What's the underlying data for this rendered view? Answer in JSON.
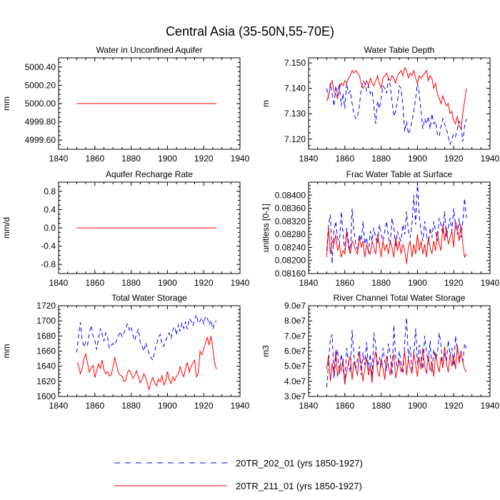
{
  "title": "Central Asia (35-50N,55-70E)",
  "colors": {
    "dashed_series": "#0000ff",
    "solid_series": "#ff0000"
  },
  "legend": [
    {
      "label": "20TR_202_01 (yrs 1850-1927)",
      "color": "#0000ff",
      "style": "dashed"
    },
    {
      "label": "20TR_211_01 (yrs 1850-1927)",
      "color": "#ff0000",
      "style": "solid"
    }
  ],
  "chart_data": [
    {
      "type": "line",
      "title": "Water in Unconfined Aquifer",
      "ylabel": "mm",
      "xlim": [
        1840,
        1940
      ],
      "ylim": [
        4999.5,
        5000.5
      ],
      "xticks": [
        1840,
        1860,
        1880,
        1900,
        1920,
        1940
      ],
      "xtick_labels": [
        "1840",
        "1860",
        "1880",
        "1900",
        "1920",
        "1940"
      ],
      "yticks": [
        4999.6,
        4999.8,
        5000.0,
        5000.2,
        5000.4
      ],
      "ytick_labels": [
        "4999.60",
        "4999.80",
        "5000.00",
        "5000.20",
        "5000.40"
      ],
      "x_start": 1850,
      "x_end": 1927,
      "series": [
        {
          "values": [
            5000,
            5000
          ]
        },
        {
          "values": [
            5000,
            5000
          ]
        }
      ]
    },
    {
      "type": "line",
      "title": "Water Table Depth",
      "ylabel": "m",
      "xlim": [
        1840,
        1940
      ],
      "ylim": [
        7.116,
        7.152
      ],
      "xticks": [
        1840,
        1860,
        1880,
        1900,
        1920,
        1940
      ],
      "xtick_labels": [
        "1840",
        "1860",
        "1880",
        "1900",
        "1920",
        "1940"
      ],
      "yticks": [
        7.12,
        7.13,
        7.14,
        7.15
      ],
      "ytick_labels": [
        "7.120",
        "7.130",
        "7.140",
        "7.150"
      ],
      "x_start": 1850,
      "x_end": 1927,
      "series": [
        {
          "values": [
            7.14,
            7.136,
            7.142,
            7.138,
            7.133,
            7.141,
            7.137,
            7.142,
            7.133,
            7.138,
            7.132,
            7.142,
            7.138,
            7.139,
            7.134,
            7.13,
            7.128,
            7.129,
            7.133,
            7.14,
            7.143,
            7.142,
            7.139,
            7.141,
            7.138,
            7.139,
            7.133,
            7.126,
            7.135,
            7.132,
            7.136,
            7.141,
            7.14,
            7.138,
            7.144,
            7.141,
            7.135,
            7.129,
            7.131,
            7.135,
            7.141,
            7.14,
            7.133,
            7.123,
            7.127,
            7.122,
            7.124,
            7.127,
            7.131,
            7.136,
            7.142,
            7.138,
            7.131,
            7.124,
            7.128,
            7.126,
            7.129,
            7.124,
            7.13,
            7.126,
            7.127,
            7.122,
            7.121,
            7.125,
            7.128,
            7.126,
            7.124,
            7.121,
            7.118,
            7.12,
            7.122,
            7.121,
            7.124,
            7.127,
            7.126,
            7.119,
            7.125,
            7.128
          ]
        },
        {
          "values": [
            7.135,
            7.137,
            7.141,
            7.143,
            7.139,
            7.138,
            7.136,
            7.14,
            7.142,
            7.141,
            7.143,
            7.142,
            7.144,
            7.145,
            7.147,
            7.146,
            7.147,
            7.146,
            7.145,
            7.142,
            7.14,
            7.141,
            7.143,
            7.141,
            7.144,
            7.142,
            7.141,
            7.143,
            7.145,
            7.142,
            7.14,
            7.144,
            7.145,
            7.146,
            7.144,
            7.143,
            7.145,
            7.144,
            7.142,
            7.145,
            7.146,
            7.147,
            7.145,
            7.148,
            7.147,
            7.144,
            7.146,
            7.145,
            7.147,
            7.144,
            7.142,
            7.145,
            7.144,
            7.145,
            7.146,
            7.147,
            7.143,
            7.145,
            7.144,
            7.14,
            7.142,
            7.138,
            7.136,
            7.134,
            7.137,
            7.135,
            7.133,
            7.134,
            7.13,
            7.131,
            7.127,
            7.126,
            7.129,
            7.125,
            7.124,
            7.13,
            7.135,
            7.14
          ]
        }
      ]
    },
    {
      "type": "line",
      "title": "Aquifer Recharge Rate",
      "ylabel": "mm/d",
      "xlim": [
        1840,
        1940
      ],
      "ylim": [
        -1.0,
        1.0
      ],
      "xticks": [
        1840,
        1860,
        1880,
        1900,
        1920,
        1940
      ],
      "xtick_labels": [
        "1840",
        "1860",
        "1880",
        "1900",
        "1920",
        "1940"
      ],
      "yticks": [
        -0.8,
        -0.4,
        0.0,
        0.4,
        0.8
      ],
      "ytick_labels": [
        "-0.8",
        "-0.4",
        "0.0",
        "0.4",
        "0.8"
      ],
      "x_start": 1850,
      "x_end": 1927,
      "series": [
        {
          "values": [
            0,
            0
          ]
        },
        {
          "values": [
            0,
            0
          ]
        }
      ]
    },
    {
      "type": "line",
      "title": "Frac Water Table at Surface",
      "ylabel": "unitless [0-1]",
      "xlim": [
        1840,
        1940
      ],
      "ylim": [
        0.0816,
        0.0844
      ],
      "xticks": [
        1840,
        1860,
        1880,
        1900,
        1920,
        1940
      ],
      "xtick_labels": [
        "1840",
        "1860",
        "1880",
        "1900",
        "1920",
        "1940"
      ],
      "yticks": [
        0.0816,
        0.082,
        0.0824,
        0.0828,
        0.0832,
        0.0836,
        0.084
      ],
      "ytick_labels": [
        "0.08160",
        "0.08200",
        "0.08240",
        "0.08280",
        "0.08320",
        "0.08360",
        "0.08400"
      ],
      "x_start": 1850,
      "x_end": 1927,
      "series": [
        {
          "values": [
            0.0823,
            0.0831,
            0.0834,
            0.0819,
            0.0829,
            0.0832,
            0.0827,
            0.0825,
            0.0835,
            0.0828,
            0.0823,
            0.083,
            0.0826,
            0.0822,
            0.0836,
            0.0829,
            0.0825,
            0.0823,
            0.0828,
            0.0826,
            0.0832,
            0.0825,
            0.0827,
            0.0822,
            0.0829,
            0.0826,
            0.083,
            0.0827,
            0.0825,
            0.0831,
            0.0828,
            0.0826,
            0.0829,
            0.0832,
            0.0827,
            0.0825,
            0.0833,
            0.083,
            0.0824,
            0.0829,
            0.0827,
            0.0826,
            0.0831,
            0.0828,
            0.0835,
            0.0829,
            0.0827,
            0.0831,
            0.084,
            0.0831,
            0.0844,
            0.0834,
            0.0829,
            0.0826,
            0.0832,
            0.0828,
            0.0825,
            0.083,
            0.0827,
            0.0832,
            0.0829,
            0.0826,
            0.0833,
            0.0831,
            0.0828,
            0.0835,
            0.0827,
            0.083,
            0.0833,
            0.0829,
            0.0836,
            0.0831,
            0.0828,
            0.0833,
            0.0827,
            0.0832,
            0.0839,
            0.0833
          ]
        },
        {
          "values": [
            0.0821,
            0.083,
            0.0822,
            0.0826,
            0.0825,
            0.0828,
            0.0823,
            0.0825,
            0.0821,
            0.0823,
            0.0822,
            0.0829,
            0.0824,
            0.0822,
            0.0826,
            0.0825,
            0.0823,
            0.0822,
            0.0827,
            0.0824,
            0.0826,
            0.0821,
            0.0825,
            0.0823,
            0.0822,
            0.0826,
            0.0824,
            0.0822,
            0.0828,
            0.0825,
            0.0821,
            0.0826,
            0.0823,
            0.0825,
            0.0822,
            0.0826,
            0.0824,
            0.0821,
            0.0827,
            0.0823,
            0.0826,
            0.0822,
            0.0825,
            0.0823,
            0.0819,
            0.0824,
            0.0826,
            0.0821,
            0.0825,
            0.0822,
            0.0828,
            0.0823,
            0.0826,
            0.0822,
            0.0825,
            0.0821,
            0.0827,
            0.0824,
            0.0822,
            0.0826,
            0.0823,
            0.0829,
            0.0825,
            0.0823,
            0.0831,
            0.0826,
            0.083,
            0.0825,
            0.0827,
            0.0829,
            0.0824,
            0.0832,
            0.083,
            0.0826,
            0.0831,
            0.0825,
            0.0821,
            0.0822
          ]
        }
      ]
    },
    {
      "type": "line",
      "title": "Total Water Storage",
      "ylabel": "mm",
      "xlim": [
        1840,
        1940
      ],
      "ylim": [
        1600,
        1720
      ],
      "xticks": [
        1840,
        1860,
        1880,
        1900,
        1920,
        1940
      ],
      "xtick_labels": [
        "1840",
        "1860",
        "1880",
        "1900",
        "1920",
        "1940"
      ],
      "yticks": [
        1600,
        1620,
        1640,
        1660,
        1680,
        1700,
        1720
      ],
      "ytick_labels": [
        "1600",
        "1620",
        "1640",
        "1660",
        "1680",
        "1700",
        "1720"
      ],
      "x_start": 1850,
      "x_end": 1927,
      "series": [
        {
          "values": [
            1658,
            1680,
            1698,
            1675,
            1665,
            1672,
            1668,
            1685,
            1694,
            1680,
            1674,
            1662,
            1676,
            1690,
            1682,
            1673,
            1684,
            1678,
            1664,
            1667,
            1670,
            1668,
            1674,
            1680,
            1686,
            1679,
            1683,
            1690,
            1696,
            1688,
            1692,
            1681,
            1674,
            1684,
            1689,
            1672,
            1667,
            1660,
            1671,
            1664,
            1655,
            1651,
            1648,
            1660,
            1669,
            1677,
            1682,
            1669,
            1666,
            1673,
            1680,
            1684,
            1677,
            1688,
            1692,
            1681,
            1695,
            1686,
            1697,
            1690,
            1699,
            1689,
            1703,
            1700,
            1694,
            1702,
            1708,
            1697,
            1700,
            1704,
            1696,
            1706,
            1704,
            1695,
            1701,
            1689,
            1697,
            1700
          ]
        },
        {
          "values": [
            1645,
            1642,
            1630,
            1636,
            1650,
            1656,
            1644,
            1632,
            1638,
            1641,
            1625,
            1634,
            1643,
            1637,
            1648,
            1635,
            1630,
            1633,
            1627,
            1629,
            1638,
            1652,
            1641,
            1631,
            1628,
            1627,
            1620,
            1621,
            1632,
            1635,
            1630,
            1624,
            1628,
            1634,
            1626,
            1618,
            1622,
            1630,
            1625,
            1616,
            1609,
            1620,
            1625,
            1618,
            1614,
            1623,
            1619,
            1628,
            1615,
            1620,
            1633,
            1622,
            1617,
            1626,
            1621,
            1627,
            1629,
            1640,
            1631,
            1626,
            1637,
            1645,
            1632,
            1639,
            1644,
            1648,
            1626,
            1630,
            1660,
            1655,
            1663,
            1671,
            1678,
            1668,
            1680,
            1664,
            1645,
            1636
          ]
        }
      ]
    },
    {
      "type": "line",
      "title": "River Channel Total Water Storage",
      "ylabel": "m3",
      "xlim": [
        1840,
        1940
      ],
      "ylim": [
        30000000,
        90000000
      ],
      "xticks": [
        1840,
        1860,
        1880,
        1900,
        1920,
        1940
      ],
      "xtick_labels": [
        "1840",
        "1860",
        "1880",
        "1900",
        "1920",
        "1940"
      ],
      "yticks": [
        30000000,
        40000000,
        50000000,
        60000000,
        70000000,
        80000000,
        90000000
      ],
      "ytick_labels": [
        "3.0e7",
        "4.0e7",
        "5.0e7",
        "6.0e7",
        "7.0e7",
        "8.0e7",
        "9.0e7"
      ],
      "x_start": 1850,
      "x_end": 1927,
      "series": [
        {
          "values": [
            36,
            52,
            68,
            71,
            42,
            55,
            61,
            45,
            58,
            49,
            38,
            62,
            53,
            46,
            74,
            57,
            48,
            55,
            63,
            44,
            59,
            51,
            66,
            47,
            58,
            43,
            72,
            64,
            50,
            56,
            49,
            62,
            53,
            47,
            65,
            58,
            44,
            77,
            56,
            48,
            60,
            52,
            45,
            66,
            82,
            55,
            63,
            47,
            58,
            75,
            51,
            64,
            56,
            48,
            70,
            59,
            53,
            67,
            46,
            61,
            55,
            58,
            72,
            64,
            49,
            59,
            53,
            67,
            57,
            62,
            50,
            70,
            61,
            55,
            60,
            52,
            65,
            62
          ]
        },
        {
          "values": [
            48,
            57,
            40,
            52,
            45,
            61,
            43,
            50,
            47,
            55,
            38,
            46,
            52,
            57,
            41,
            53,
            48,
            44,
            59,
            51,
            40,
            48,
            56,
            44,
            50,
            39,
            54,
            60,
            47,
            43,
            55,
            49,
            41,
            57,
            50,
            44,
            53,
            58,
            42,
            48,
            54,
            46,
            51,
            60,
            44,
            55,
            49,
            45,
            59,
            51,
            43,
            56,
            48,
            62,
            50,
            45,
            57,
            47,
            53,
            43,
            59,
            51,
            46,
            56,
            49,
            63,
            52,
            46,
            58,
            50,
            57,
            48,
            64,
            52,
            59,
            53,
            48,
            46
          ]
        }
      ]
    }
  ]
}
